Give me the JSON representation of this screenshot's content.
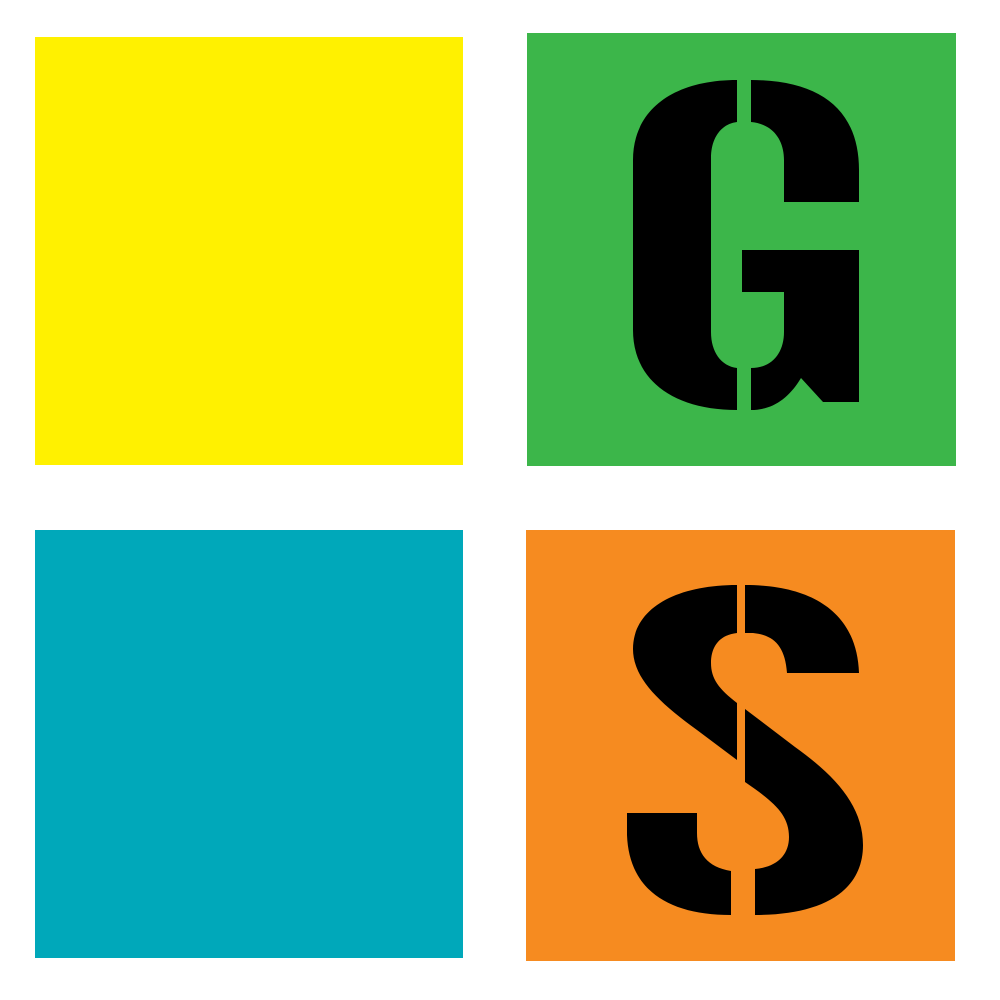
{
  "tiles": {
    "top_left": {
      "color": "#FFF100"
    },
    "top_right": {
      "color": "#3CB64A"
    },
    "bottom_left": {
      "color": "#00A8BA"
    },
    "bottom_right": {
      "color": "#F68B20"
    }
  },
  "logo": {
    "letters": [
      "G",
      "S"
    ],
    "letter_color": "#000000"
  }
}
